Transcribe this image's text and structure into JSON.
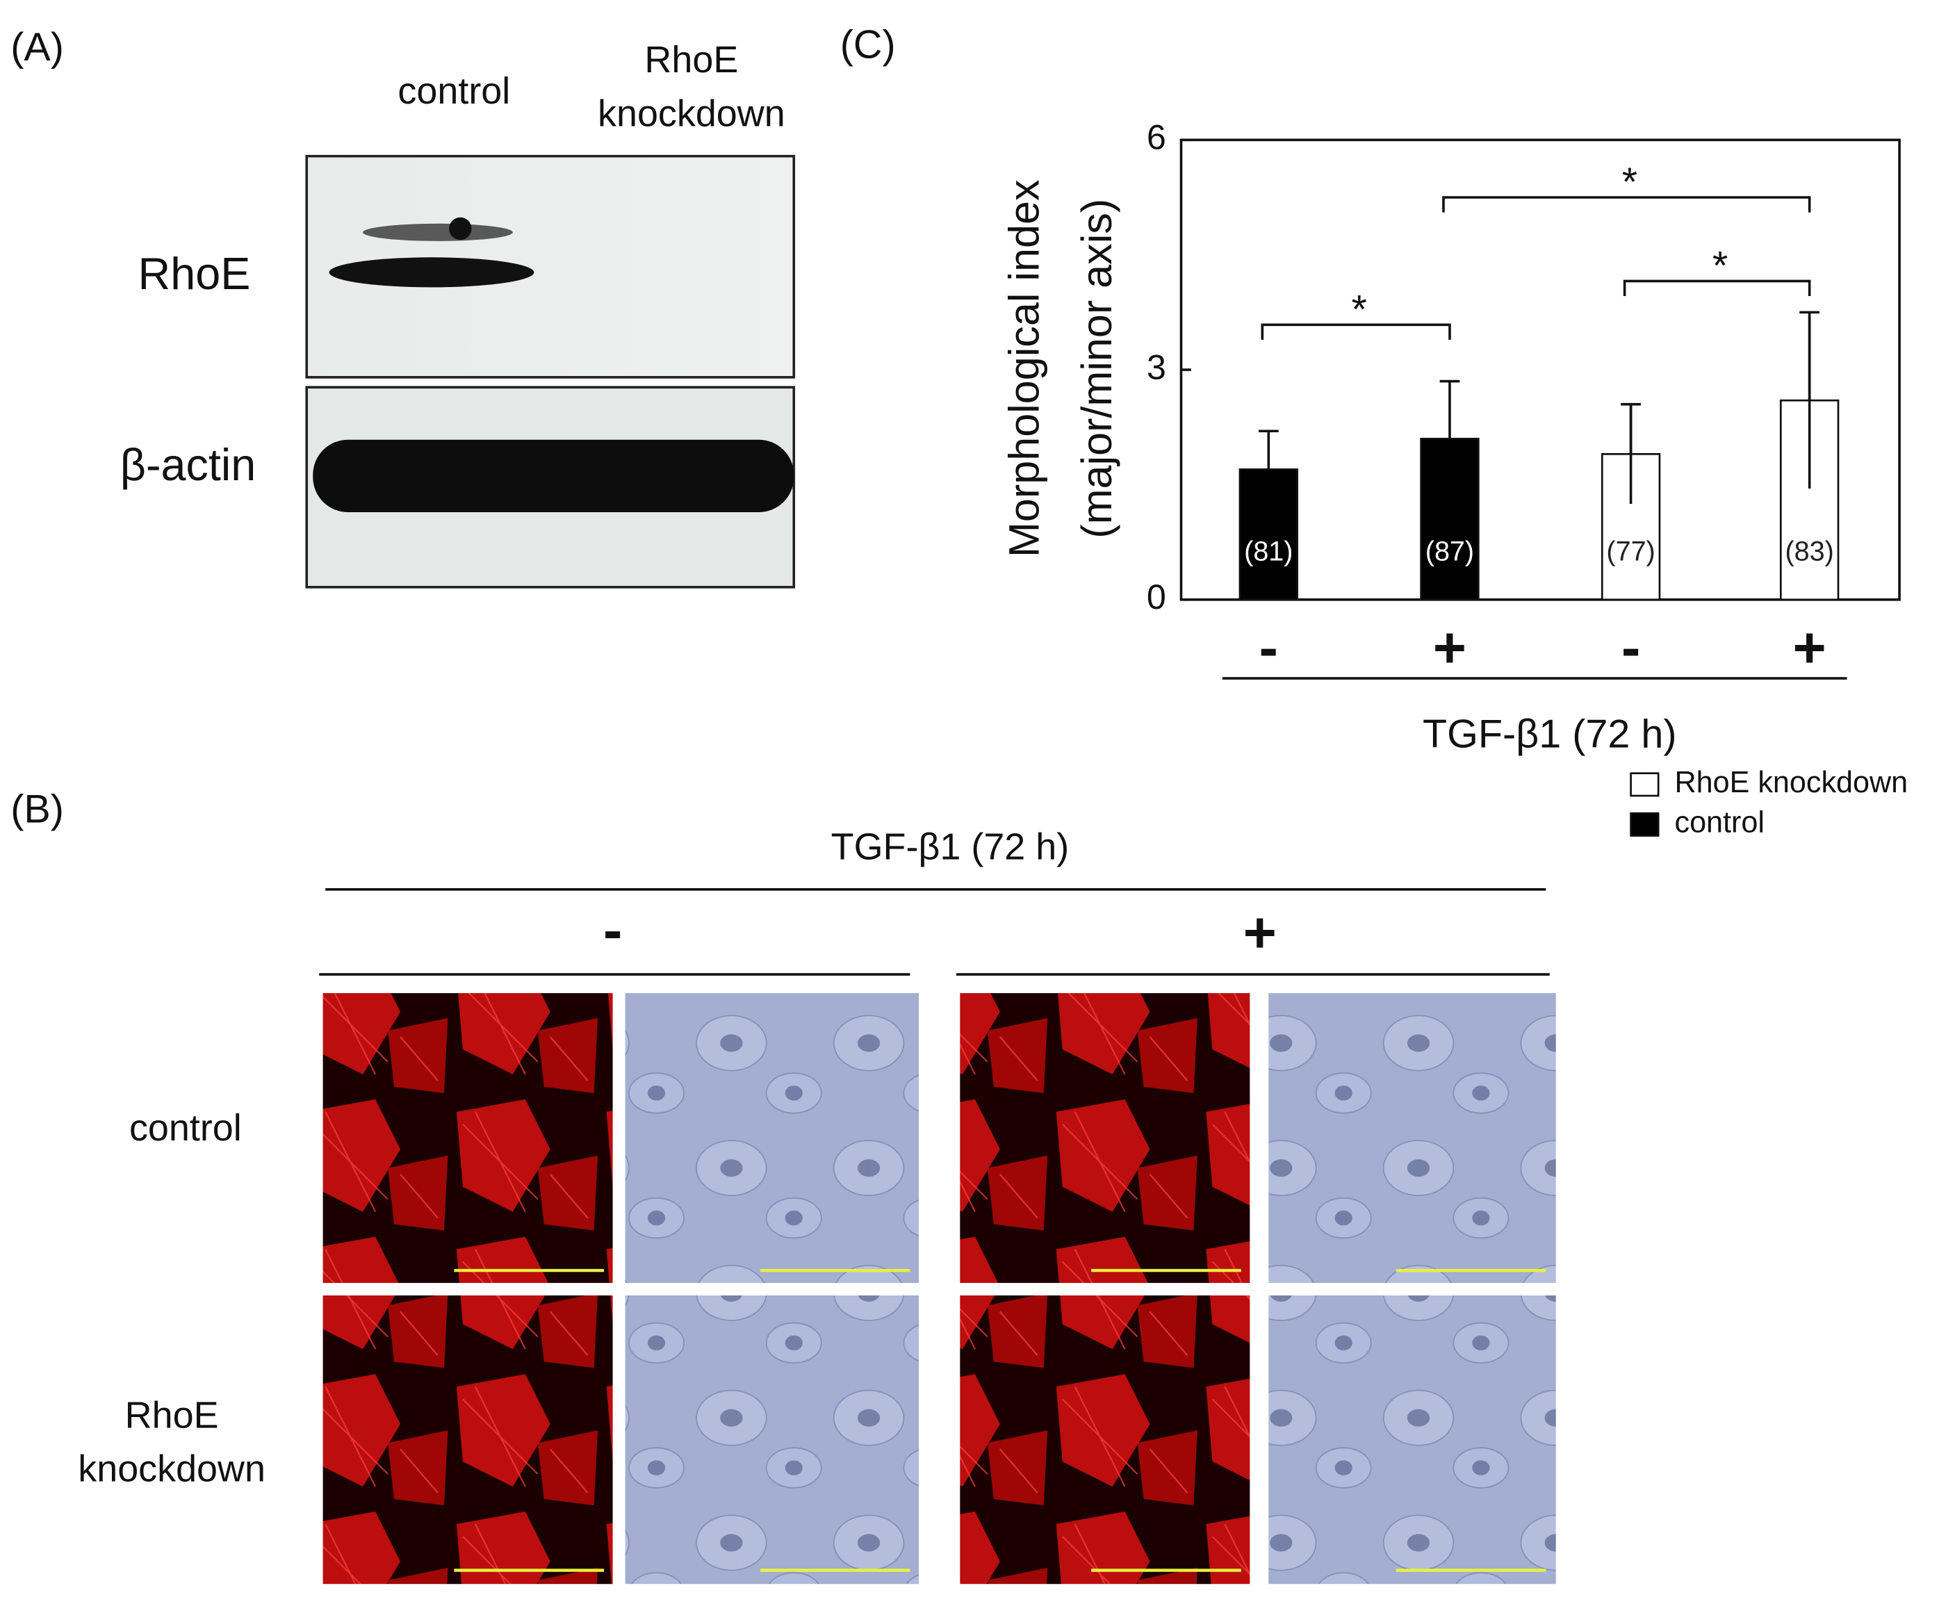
{
  "panel_a": {
    "label": "(A)",
    "lane_labels": [
      [
        "control"
      ],
      [
        "RhoE",
        "knockdown"
      ]
    ],
    "row_labels": [
      "RhoE",
      "β-actin"
    ]
  },
  "panel_b": {
    "label": "(B)",
    "treatment": "TGF-β1 (72 h)",
    "conditions": [
      "-",
      "+"
    ],
    "row_labels": [
      [
        "control"
      ],
      [
        "RhoE",
        "knockdown"
      ]
    ]
  },
  "panel_c": {
    "label": "(C)"
  },
  "chart_data": {
    "type": "bar",
    "ylabel": [
      "Morphological index",
      "(major/minor axis)"
    ],
    "xlabel": "TGF-β1 (72 h)",
    "categories": [
      "-",
      "+",
      "-",
      "+"
    ],
    "series": [
      {
        "name": "RhoE knockdown",
        "color": "#ffffff",
        "values": [
          null,
          null,
          1.9,
          2.6
        ],
        "errors": [
          null,
          null,
          0.65,
          1.15
        ]
      },
      {
        "name": "control",
        "color": "#000000",
        "values": [
          1.7,
          2.1,
          null,
          null
        ],
        "errors": [
          0.5,
          0.75,
          null,
          null
        ]
      }
    ],
    "sample_size_labels": [
      "(81)",
      "(87)",
      "(77)",
      "(83)"
    ],
    "annotations": [
      "*",
      "*",
      "*"
    ],
    "ylim": [
      0,
      6
    ],
    "yticks": [
      0,
      3,
      6
    ],
    "legend": "bottom-right"
  }
}
